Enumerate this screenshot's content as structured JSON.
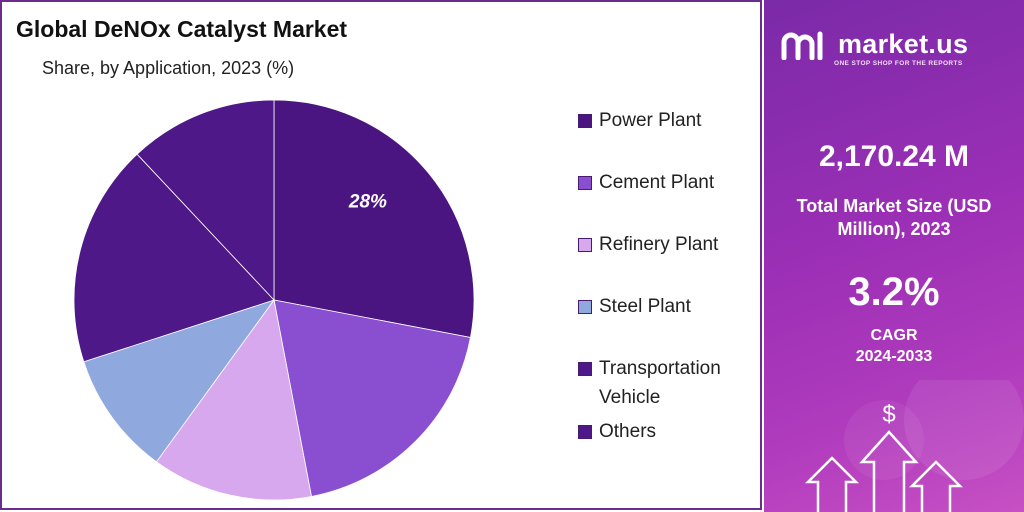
{
  "title": "Global DeNOx Catalyst Market",
  "subtitle": "Share, by Application, 2023 (%)",
  "chart_data": {
    "type": "pie",
    "title": "Global DeNOx Catalyst Market",
    "subtitle": "Share, by Application, 2023 (%)",
    "categories": [
      "Power Plant",
      "Cement Plant",
      "Refinery Plant",
      "Steel Plant",
      "Transportation Vehicle",
      "Others"
    ],
    "values": [
      28,
      19,
      13,
      10,
      18,
      12
    ],
    "colors": [
      "#4a1580",
      "#8a4fd0",
      "#d7a8ee",
      "#8fa8de",
      "#4e1888",
      "#4e1888"
    ],
    "data_labels": [
      "28%",
      "",
      "",
      "",
      "",
      ""
    ],
    "legend_position": "right"
  },
  "legend": [
    {
      "label": "Power Plant",
      "color": "#4a1580"
    },
    {
      "label": "Cement Plant",
      "color": "#8a4fd0"
    },
    {
      "label": "Refinery Plant",
      "color": "#d7a8ee"
    },
    {
      "label": "Steel Plant",
      "color": "#8fa8de"
    },
    {
      "label": "Transportation Vehicle",
      "color": "#4e1888"
    },
    {
      "label": "Others",
      "color": "#4e1888"
    }
  ],
  "sidebar": {
    "brand": "market.us",
    "tagline": "ONE STOP SHOP FOR THE REPORTS",
    "market_size": "2,170.24 M",
    "market_size_label": "Total Market Size (USD Million), 2023",
    "cagr": "3.2%",
    "cagr_label": "CAGR",
    "cagr_period": "2024-2033",
    "dollar_symbol": "$"
  }
}
